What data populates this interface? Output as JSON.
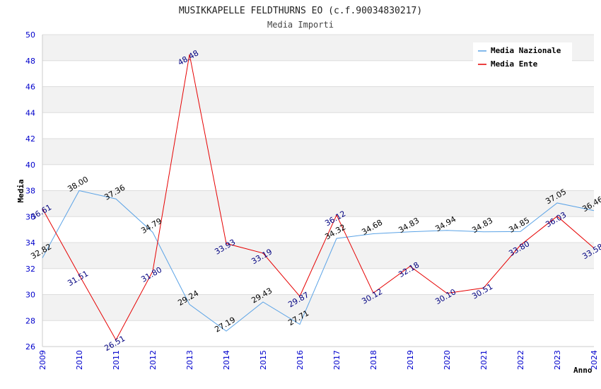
{
  "chart_data": {
    "type": "line",
    "title": "MUSIKKAPELLE FELDTHURNS EO (c.f.90034830217)",
    "subtitle": "Media Importi",
    "xlabel": "Anno",
    "ylabel": "Media",
    "ylim": [
      26,
      50
    ],
    "yticks": [
      "26",
      "28",
      "30",
      "32",
      "34",
      "36",
      "38",
      "40",
      "42",
      "44",
      "46",
      "48",
      "50"
    ],
    "x": [
      "2009",
      "2010",
      "2011",
      "2012",
      "2013",
      "2014",
      "2015",
      "2016",
      "2017",
      "2018",
      "2019",
      "2020",
      "2021",
      "2022",
      "2023",
      "2024"
    ],
    "grid": true,
    "legend_position": "top-right",
    "series": [
      {
        "name": "Media Nazionale",
        "color": "#5ba3e6",
        "values": [
          32.82,
          38.0,
          37.36,
          34.79,
          29.24,
          27.19,
          29.43,
          27.71,
          34.32,
          34.68,
          34.83,
          34.94,
          34.83,
          34.85,
          37.05,
          36.46
        ],
        "labels": [
          "32.82",
          "38.00",
          "37.36",
          "34.79",
          "29.24",
          "27.19",
          "29.43",
          "27.71",
          "34.32",
          "34.68",
          "34.83",
          "34.94",
          "34.83",
          "34.85",
          "37.05",
          "36.46"
        ]
      },
      {
        "name": "Media Ente",
        "color": "#e60000",
        "values": [
          36.61,
          31.51,
          26.51,
          31.8,
          48.48,
          33.93,
          33.19,
          29.87,
          36.12,
          30.12,
          32.18,
          30.1,
          30.51,
          33.8,
          36.03,
          33.58
        ],
        "labels": [
          "36.61",
          "31.51",
          "26.51",
          "31.80",
          "48.48",
          "33.93",
          "33.19",
          "29.87",
          "36.12",
          "30.12",
          "32.18",
          "30.10",
          "30.51",
          "33.80",
          "36.03",
          "33.58"
        ]
      }
    ]
  }
}
